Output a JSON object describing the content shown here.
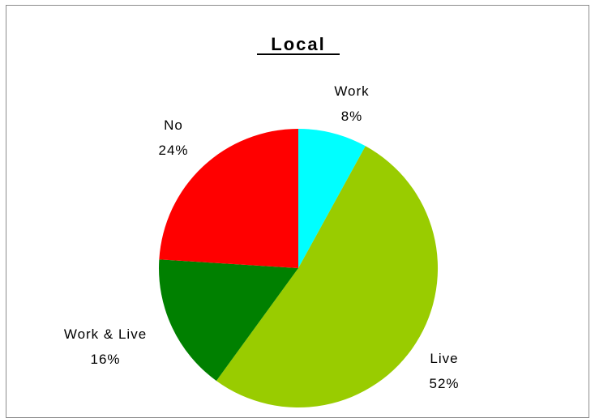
{
  "chart_data": {
    "type": "pie",
    "title": "Local",
    "slices": [
      {
        "label": "Work",
        "percent_label": "8%",
        "value": 8,
        "color": "#00ffff"
      },
      {
        "label": "Live",
        "percent_label": "52%",
        "value": 52,
        "color": "#99cc00"
      },
      {
        "label": "Work & Live",
        "percent_label": "16%",
        "value": 16,
        "color": "#008000"
      },
      {
        "label": "No",
        "percent_label": "24%",
        "value": 24,
        "color": "#ff0000"
      }
    ],
    "start": "12 o'clock",
    "direction": "clockwise"
  }
}
